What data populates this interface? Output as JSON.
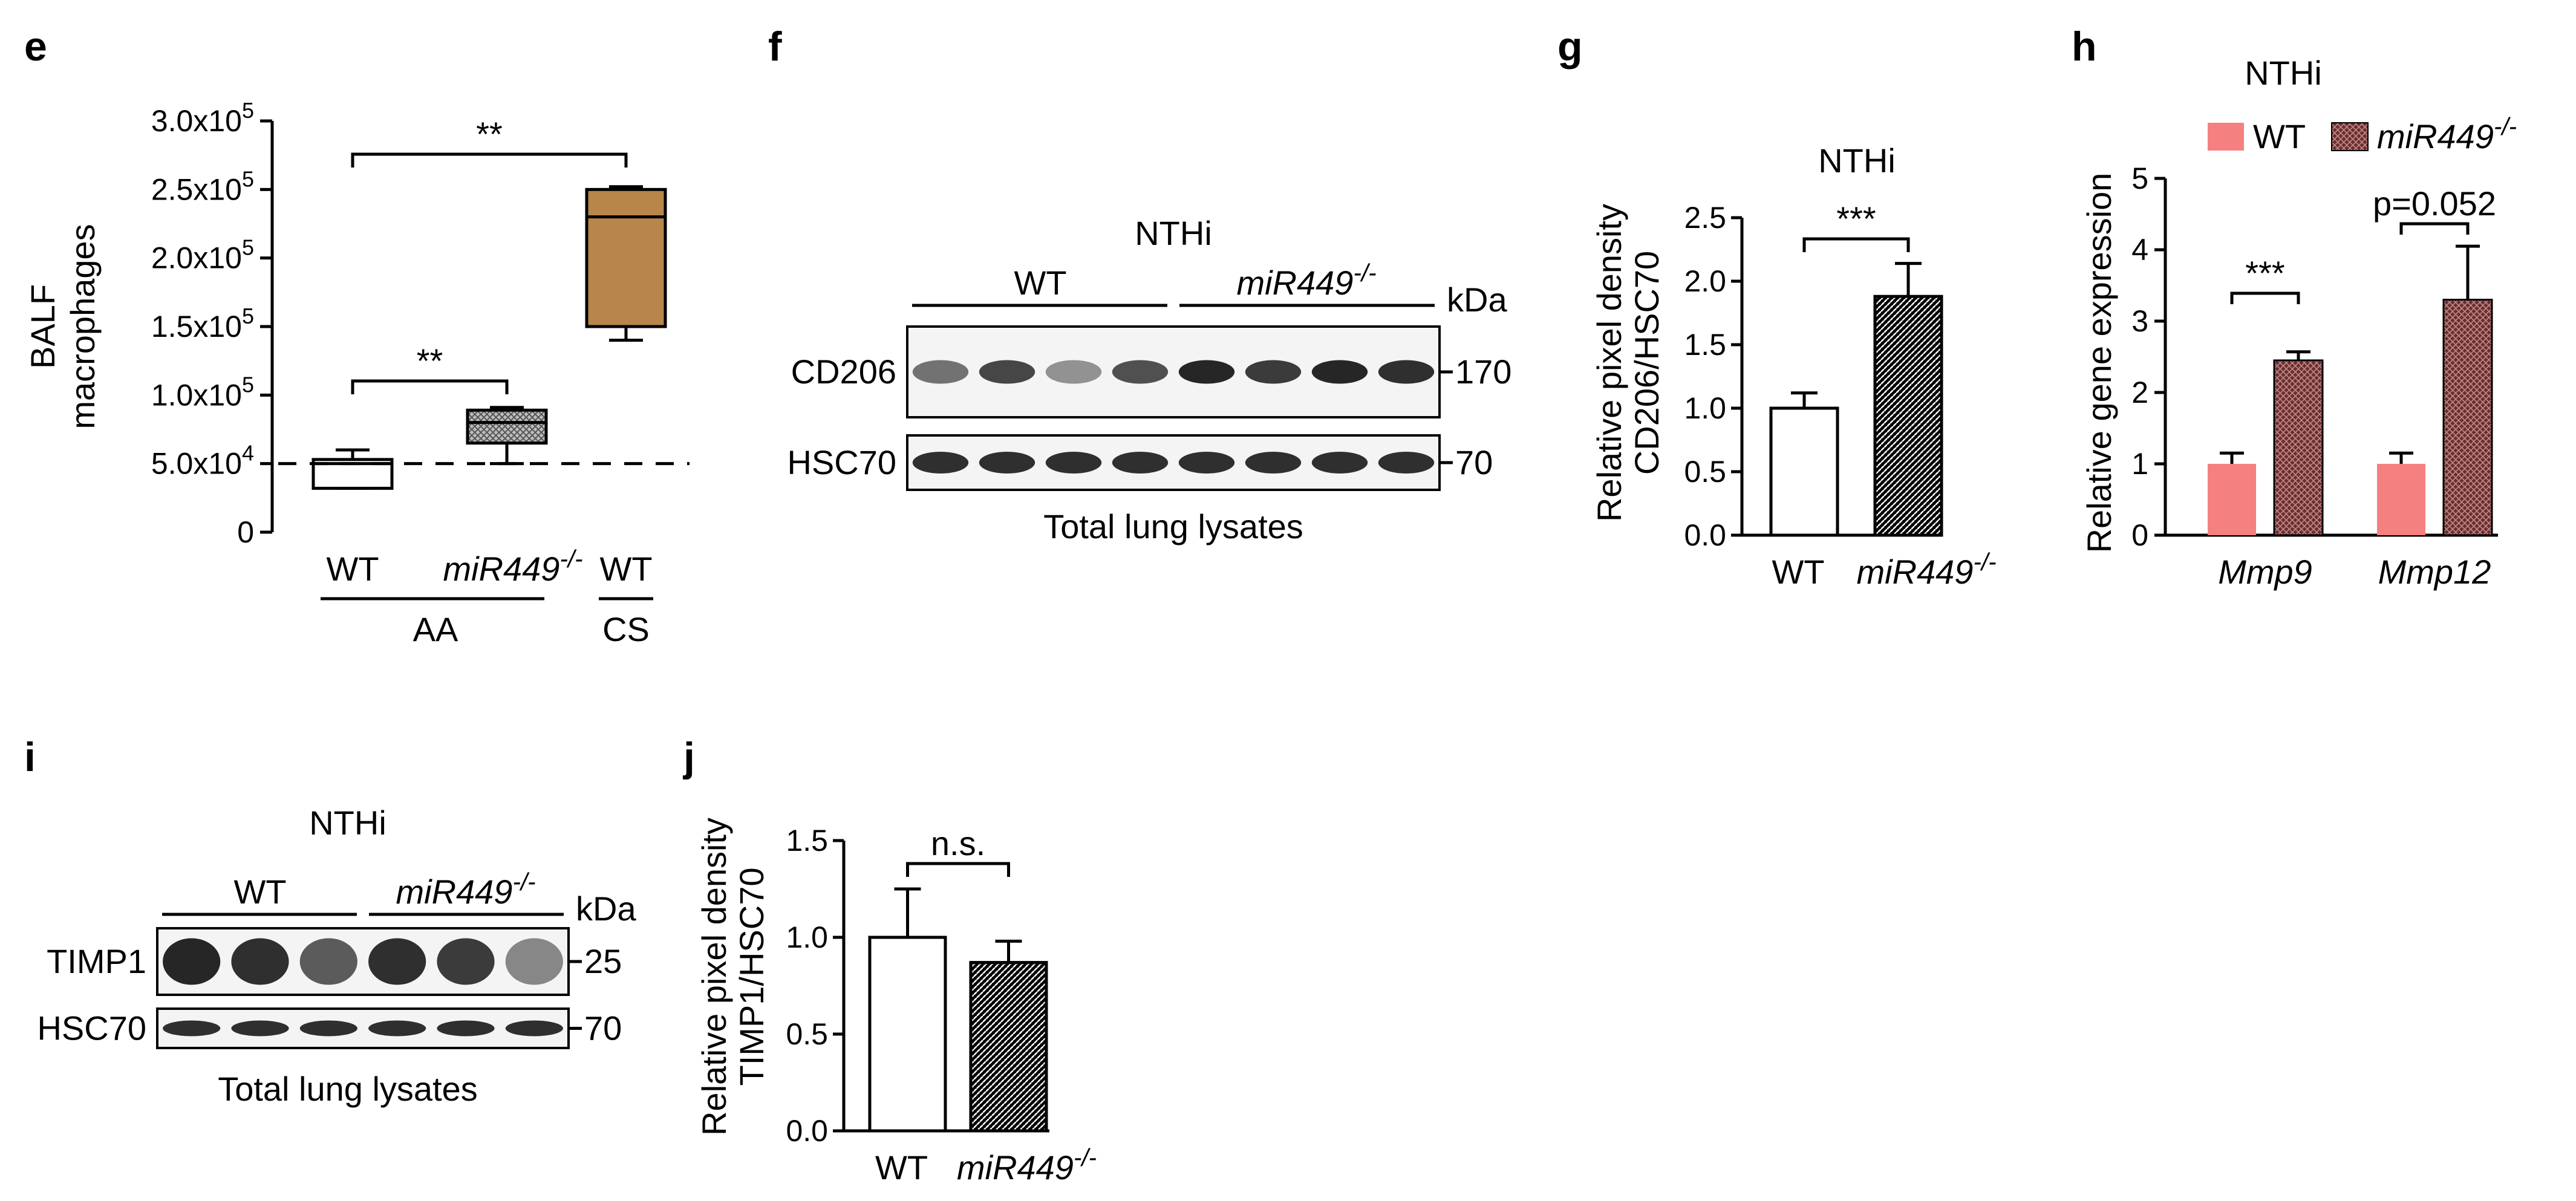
{
  "colors": {
    "black": "#000000",
    "box_cs": "#b8864a",
    "bar_wt_h": "#f58080",
    "bar_ko_h": "#6b2e2e",
    "blot_band": "#1a1a1a"
  },
  "chart_data": [
    {
      "panel": "e",
      "type": "box",
      "ylabel": [
        "BALF",
        "macrophages"
      ],
      "yticks": [
        {
          "v": 0,
          "t": "0"
        },
        {
          "v": 50000,
          "m": "5.0x10",
          "e": "4"
        },
        {
          "v": 100000,
          "m": "1.0x10",
          "e": "5"
        },
        {
          "v": 150000,
          "m": "1.5x10",
          "e": "5"
        },
        {
          "v": 200000,
          "m": "2.0x10",
          "e": "5"
        },
        {
          "v": 250000,
          "m": "2.5x10",
          "e": "5"
        },
        {
          "v": 300000,
          "m": "3.0x10",
          "e": "5"
        }
      ],
      "ylim": [
        0,
        300000
      ],
      "groups": [
        {
          "name": "WT",
          "group": "AA",
          "min": 32000,
          "q1": 32000,
          "median": 50000,
          "q3": 53000,
          "max": 60000,
          "fill": "white"
        },
        {
          "name": "miR449-/-",
          "group": "AA",
          "min": 50000,
          "q1": 65000,
          "median": 80000,
          "q3": 89000,
          "max": 91000,
          "fill": "hatched"
        },
        {
          "name": "WT",
          "group": "CS",
          "min": 140000,
          "q1": 150000,
          "median": 230000,
          "q3": 250000,
          "max": 252000,
          "fill": "brown"
        }
      ],
      "group_labels": [
        "AA",
        "CS"
      ],
      "reference_line": 50000,
      "significance": [
        "**",
        "**"
      ]
    },
    {
      "panel": "g",
      "type": "bar",
      "title": "NTHi",
      "ylabel": [
        "Relative pixel density",
        "CD206/HSC70"
      ],
      "categories": [
        "WT",
        "miR449-/-"
      ],
      "values": [
        1.0,
        1.88
      ],
      "errors": [
        0.12,
        0.26
      ],
      "ylim": [
        0,
        2.5
      ],
      "yticks": [
        "0.0",
        "0.5",
        "1.0",
        "1.5",
        "2.0",
        "2.5"
      ],
      "significance": "***"
    },
    {
      "panel": "h",
      "type": "bar",
      "title": "NTHi",
      "ylabel": "Relative gene expression",
      "categories": [
        "Mmp9",
        "Mmp12"
      ],
      "series": [
        {
          "name": "WT",
          "values": [
            1.0,
            1.0
          ],
          "errors": [
            0.15,
            0.15
          ]
        },
        {
          "name": "miR449-/-",
          "values": [
            2.45,
            3.3
          ],
          "errors": [
            0.12,
            0.75
          ]
        }
      ],
      "ylim": [
        0,
        5
      ],
      "yticks": [
        "0",
        "1",
        "2",
        "3",
        "4",
        "5"
      ],
      "significance": [
        "***",
        "p=0.052"
      ]
    },
    {
      "panel": "j",
      "type": "bar",
      "ylabel": [
        "Relative pixel density",
        "TIMP1/HSC70"
      ],
      "categories": [
        "WT",
        "miR449-/-"
      ],
      "values": [
        1.0,
        0.87
      ],
      "errors": [
        0.25,
        0.11
      ],
      "ylim": [
        0,
        1.5
      ],
      "yticks": [
        "0.0",
        "0.5",
        "1.0",
        "1.5"
      ],
      "significance": "n.s."
    }
  ],
  "blots": {
    "f": {
      "title": "NTHi",
      "groups": [
        "WT",
        "miR449-/-"
      ],
      "unit": "kDa",
      "rows": [
        {
          "label": "CD206",
          "marker": "170",
          "intensities": [
            0.6,
            0.8,
            0.45,
            0.75,
            0.95,
            0.85,
            0.95,
            0.9
          ]
        },
        {
          "label": "HSC70",
          "marker": "70",
          "intensities": [
            0.9,
            0.9,
            0.9,
            0.9,
            0.9,
            0.9,
            0.9,
            0.9
          ]
        }
      ],
      "caption": "Total lung lysates"
    },
    "i": {
      "title": "NTHi",
      "groups": [
        "WT",
        "miR449-/-"
      ],
      "unit": "kDa",
      "rows": [
        {
          "label": "TIMP1",
          "marker": "25",
          "intensities": [
            0.95,
            0.9,
            0.7,
            0.9,
            0.85,
            0.5
          ]
        },
        {
          "label": "HSC70",
          "marker": "70",
          "intensities": [
            0.9,
            0.9,
            0.9,
            0.9,
            0.9,
            0.9
          ]
        }
      ],
      "caption": "Total lung lysates"
    }
  },
  "labels": {
    "e": "e",
    "f": "f",
    "g": "g",
    "h": "h",
    "i": "i",
    "j": "j",
    "wt": "WT",
    "ko": "miR449",
    "ko_sup": "-/-"
  }
}
